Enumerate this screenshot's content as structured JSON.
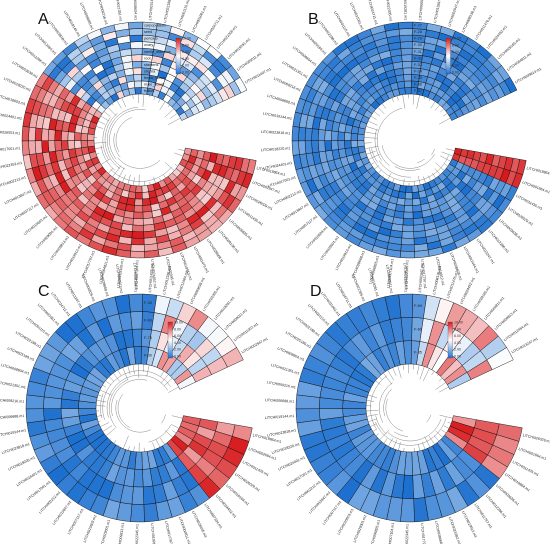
{
  "figure": {
    "panels": [
      {
        "letter": "A",
        "tracks": [
          "fruitlet",
          "male_flower",
          "femal_flower",
          "stigma",
          "stamens",
          "root",
          "sterile_stamens",
          "ovary",
          "pericarp",
          "seed",
          "carpopodium"
        ],
        "scale_ticks": [
          "10.00",
          "8.00",
          "6.00",
          "4.00",
          "2.00",
          "0.00"
        ],
        "genes": [
          "LITCHI019864.m1",
          "LITCHI002947.m1",
          "LITCHI026029.m1",
          "LITCHI011435.m1",
          "LITCHI006825.m1",
          "LITCHI008136.m1",
          "LITCHI028668.m1",
          "LITCHI011476.m1",
          "LITCHI019913.m1",
          "LITCHI022345.m1",
          "LITCHI024452.m1",
          "LITCHI007104.m1",
          "LITCHI028165.m1",
          "LITCHI004811.m1",
          "LITCHI017797.m1",
          "LITCHI019912.m1",
          "LITCHI009813.m1",
          "LITCHI029001.m1",
          "LITCHI015603.m1",
          "LITCHI007117.m1",
          "LITCHI013847.m1",
          "LITCHI002212.m1",
          "LITCHI022353.m1",
          "LITCHI017001.m1",
          "LITCHI026553.m1",
          "LITCHI024401.m1",
          "LITCHI018003.m1",
          "LITCHI018220.m1",
          "LITCHI003638.m1",
          "LITCHI012286.m1",
          "LITCHI012464.m1",
          "LITCHI023818.m1",
          "LITCHI019144.m1",
          "LITCHI006688.m1",
          "LITCHI009216.m1",
          "LITCHI021351.m1",
          "LITCHI008604.m1",
          "LITCHI025189.m1",
          "LITCHI022188.m1",
          "LITCHI001115.m1",
          "LITCHI031061.m1",
          "LITCHI024711.m1",
          "LITCHI022305.m1",
          "LITCHI019281.m1",
          "LITCHI009011.m1",
          "LITCHI011007.m1"
        ],
        "color_seed": 1,
        "hot_fraction": 0.62,
        "start_deg": -20,
        "span_deg": 330
      },
      {
        "letter": "B",
        "tracks": [
          "F-37",
          "F-36",
          "F-35",
          "F-34",
          "F-33",
          "F-32",
          "F-31",
          "F-30",
          "F-29",
          "F-28",
          "F-27"
        ],
        "scale_ticks": [
          "10.00",
          "8.00",
          "6.00",
          "4.00",
          "2.00",
          "0.00"
        ],
        "genes": [
          "LITCHI019864.m1",
          "LITCHI001664.m1",
          "LITCHI011435.m1",
          "LITCHI026029.m1",
          "LITCHI003638.m1",
          "LITCHI012286.m1",
          "LITCHI013247.m1",
          "LITCHI012464.m1",
          "LITCHI008876.m1",
          "LITCHI019912.m1",
          "LITCHI017797.m1",
          "LITCHI022345.m1",
          "LITCHI007104.m1",
          "LITCHI006825.m1",
          "LITCHI028668.m1",
          "LITCHI019913.m1",
          "LITCHI029001.m1",
          "LITCHI015603.m1",
          "LITCHI007117.m1",
          "LITCHI013847.m1",
          "LITCHI002212.m1",
          "LITCHI017001.m1",
          "LITCHI024401.m1",
          "LITCHI018220.m1",
          "LITCHI023818.m1",
          "LITCHI019144.m1",
          "LITCHI006688.m1",
          "LITCHI009216.m1",
          "LITCHI021351.m1",
          "LITCHI008604.m1",
          "LITCHI025189.m1",
          "LITCHI022188.m1",
          "LITCHI001115.m1",
          "LITCHI031061.m1",
          "LITCHI024711.m1",
          "LITCHI022305.m1",
          "LITCHI019281.m1",
          "LITCHI009011.m1",
          "LITCHI011007.m1",
          "LITCHI002947.m1",
          "LITCHI008136.m1",
          "LITCHI011476.m1",
          "LITCHI024452.m1",
          "LITCHI028165.m1",
          "LITCHI004811.m1",
          "LITCHI009813.m1"
        ],
        "color_seed": 2,
        "hot_fraction": 0.05,
        "start_deg": -20,
        "span_deg": 330
      },
      {
        "letter": "C",
        "tracks": [
          "F-30",
          "F-75",
          "F-60",
          "F-33"
        ],
        "scale_ticks": [
          "10.00",
          "8.00",
          "6.00",
          "4.00",
          "2.00",
          "0.00"
        ],
        "genes": [
          "LITCHI019864.m1",
          "LITCHI002694.m1",
          "LITCHI011435.m1",
          "LITCHI026029.m1",
          "LITCHI019169.m1",
          "LITCHI024452.m1",
          "LITCHI007104.m1",
          "LITCHI028165.m1",
          "LITCHI004811.m1",
          "LITCHI017797.m1",
          "LITCHI019912.m1",
          "LITCHI022345.m1",
          "LITCHI009813.m1",
          "LITCHI029001.m1",
          "LITCHI015603.m1",
          "LITCHI007117.m1",
          "LITCHI013847.m1",
          "LITCHI002212.m1",
          "LITCHI017001.m1",
          "LITCHI024401.m1",
          "LITCHI018220.m1",
          "LITCHI023818.m1",
          "LITCHI019144.m1",
          "LITCHI006688.m1",
          "LITCHI009216.m1",
          "LITCHI021351.m1",
          "LITCHI008604.m1",
          "LITCHI025189.m1",
          "LITCHI022188.m1",
          "LITCHI001115.m1",
          "LITCHI031061.m1",
          "LITCHI024711.m1",
          "LITCHI013247.m1",
          "LITCHI006825.m1",
          "LITCHI028668.m1",
          "LITCHI019913.m1",
          "LITCHI008136.m1",
          "LITCHI011476.m1",
          "LITCHI012286.m1",
          "LITCHI012464.m1",
          "LITCHI003638.m1",
          "LITCHI022305.m1",
          "LITCHI019281.m1",
          "LITCHI009011.m1",
          "LITCHI011007.m1",
          "LITCHI002947.m1"
        ],
        "color_seed": 3,
        "hot_fraction": 0.12,
        "start_deg": -20,
        "span_deg": 330
      },
      {
        "letter": "D",
        "tracks": [
          "F-35",
          "F-60",
          "F-69"
        ],
        "scale_ticks": [
          "10.00",
          "8.00",
          "6.00",
          "4.00",
          "2.00",
          "0.00"
        ],
        "genes": [
          "LITCHI026029.m1",
          "LITCHI001664.m1",
          "LITCHI011435.m1",
          "LITCHI019864.m1",
          "LITCHI003638.m1",
          "LITCHI012286.m1",
          "LITCHI011797.m1",
          "LITCHI019913.m1",
          "LITCHI023282.m1",
          "LITCHI028668.m1",
          "LITCHI017797.m1",
          "LITCHI022345.m1",
          "LITCHI007104.m1",
          "LITCHI006825.m1",
          "LITCHI029001.m1",
          "LITCHI015603.m1",
          "LITCHI007117.m1",
          "LITCHI013847.m1",
          "LITCHI002212.m1",
          "LITCHI017001.m1",
          "LITCHI024401.m1",
          "LITCHI018220.m1",
          "LITCHI023818.m1",
          "LITCHI019144.m1",
          "LITCHI006688.m1",
          "LITCHI009216.m1",
          "LITCHI021351.m1",
          "LITCHI008604.m1",
          "LITCHI025189.m1",
          "LITCHI022188.m1",
          "LITCHI001115.m1",
          "LITCHI031061.m1",
          "LITCHI024711.m1",
          "LITCHI022305.m1",
          "LITCHI019281.m1",
          "LITCHI009011.m1",
          "LITCHI011007.m1",
          "LITCHI002947.m1",
          "LITCHI008136.m1",
          "LITCHI011476.m1",
          "LITCHI024452.m1",
          "LITCHI028165.m1",
          "LITCHI004811.m1",
          "LITCHI009813.m1",
          "LITCHI012464.m1",
          "LITCHI013247.m1"
        ],
        "color_seed": 4,
        "hot_fraction": 0.08,
        "start_deg": -20,
        "span_deg": 330
      }
    ],
    "colors": {
      "high": "#d7191c",
      "mid": "#ffffff",
      "low": "#2c7bd6",
      "lowest": "#1b6fcf"
    }
  }
}
